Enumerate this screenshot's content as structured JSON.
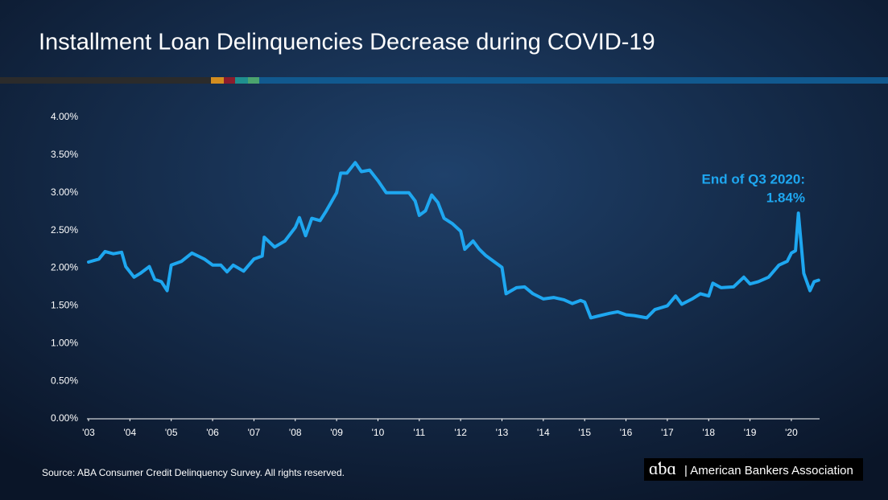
{
  "chart_data": {
    "type": "line",
    "title": "Installment Loan Delinquencies Decrease during COVID-19",
    "annotation": [
      "End of Q3 2020:",
      "1.84%"
    ],
    "source": "Source: ABA Consumer Credit Delinquency Survey. All rights reserved.",
    "logo_text": "| American Bankers Association",
    "color": "#1ea7f0",
    "x": [
      2003.0,
      2003.25,
      2003.4,
      2003.6,
      2003.8,
      2003.9,
      2004.1,
      2004.25,
      2004.47,
      2004.6,
      2004.76,
      2004.9,
      2005.0,
      2005.25,
      2005.5,
      2005.65,
      2005.8,
      2006.0,
      2006.2,
      2006.35,
      2006.5,
      2006.75,
      2007.0,
      2007.2,
      2007.25,
      2007.5,
      2007.75,
      2008.0,
      2008.1,
      2008.25,
      2008.4,
      2008.6,
      2008.75,
      2009.0,
      2009.1,
      2009.25,
      2009.45,
      2009.6,
      2009.8,
      2010.0,
      2010.2,
      2010.5,
      2010.75,
      2010.9,
      2011.0,
      2011.15,
      2011.3,
      2011.45,
      2011.6,
      2011.8,
      2012.0,
      2012.1,
      2012.3,
      2012.45,
      2012.6,
      2012.8,
      2013.0,
      2013.1,
      2013.35,
      2013.55,
      2013.75,
      2014.0,
      2014.25,
      2014.5,
      2014.7,
      2014.9,
      2015.0,
      2015.15,
      2015.3,
      2015.6,
      2015.8,
      2016.0,
      2016.2,
      2016.5,
      2016.7,
      2017.0,
      2017.2,
      2017.35,
      2017.6,
      2017.8,
      2018.0,
      2018.1,
      2018.3,
      2018.6,
      2018.85,
      2019.0,
      2019.2,
      2019.45,
      2019.7,
      2019.9,
      2020.0,
      2020.1,
      2020.17,
      2020.3,
      2020.45,
      2020.55,
      2020.66
    ],
    "values": [
      2.08,
      2.12,
      2.22,
      2.19,
      2.21,
      2.02,
      1.88,
      1.93,
      2.02,
      1.85,
      1.82,
      1.7,
      2.04,
      2.09,
      2.2,
      2.16,
      2.12,
      2.04,
      2.04,
      1.95,
      2.04,
      1.96,
      2.12,
      2.16,
      2.41,
      2.28,
      2.36,
      2.54,
      2.67,
      2.43,
      2.66,
      2.63,
      2.76,
      3.0,
      3.26,
      3.26,
      3.4,
      3.28,
      3.3,
      3.16,
      3.0,
      3.0,
      3.0,
      2.89,
      2.7,
      2.76,
      2.97,
      2.87,
      2.66,
      2.59,
      2.49,
      2.25,
      2.36,
      2.25,
      2.17,
      2.09,
      2.01,
      1.66,
      1.74,
      1.75,
      1.66,
      1.59,
      1.61,
      1.58,
      1.53,
      1.57,
      1.55,
      1.34,
      1.36,
      1.4,
      1.42,
      1.38,
      1.37,
      1.34,
      1.45,
      1.5,
      1.63,
      1.52,
      1.59,
      1.66,
      1.63,
      1.8,
      1.74,
      1.75,
      1.88,
      1.79,
      1.82,
      1.88,
      2.04,
      2.09,
      2.2,
      2.23,
      2.73,
      1.93,
      1.7,
      1.82,
      1.84
    ],
    "xlim": [
      2003,
      2020.8
    ],
    "xticks": [
      {
        "value": 2003,
        "label": "'03"
      },
      {
        "value": 2004,
        "label": "'04"
      },
      {
        "value": 2005,
        "label": "'05"
      },
      {
        "value": 2006,
        "label": "'06"
      },
      {
        "value": 2007,
        "label": "'07"
      },
      {
        "value": 2008,
        "label": "'08"
      },
      {
        "value": 2009,
        "label": "'09"
      },
      {
        "value": 2010,
        "label": "'10"
      },
      {
        "value": 2011,
        "label": "'11"
      },
      {
        "value": 2012,
        "label": "'12"
      },
      {
        "value": 2013,
        "label": "'13"
      },
      {
        "value": 2014,
        "label": "'14"
      },
      {
        "value": 2015,
        "label": "'15"
      },
      {
        "value": 2016,
        "label": "'16"
      },
      {
        "value": 2017,
        "label": "'17"
      },
      {
        "value": 2018,
        "label": "'18"
      },
      {
        "value": 2019,
        "label": "'19"
      },
      {
        "value": 2020,
        "label": "'20"
      }
    ],
    "ylim": [
      0,
      4
    ],
    "yticks": [
      {
        "value": 0,
        "label": "0.00%"
      },
      {
        "value": 0.5,
        "label": "0.50%"
      },
      {
        "value": 1,
        "label": "1.00%"
      },
      {
        "value": 1.5,
        "label": "1.50%"
      },
      {
        "value": 2,
        "label": "2.00%"
      },
      {
        "value": 2.5,
        "label": "2.50%"
      },
      {
        "value": 3,
        "label": "3.00%"
      },
      {
        "value": 3.5,
        "label": "3.50%"
      },
      {
        "value": 4,
        "label": "4.00%"
      }
    ],
    "grid": false
  }
}
